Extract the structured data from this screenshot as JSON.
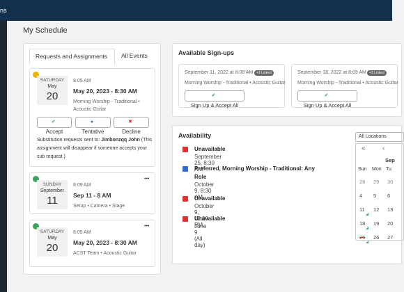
{
  "header": {
    "brand": "ns"
  },
  "page": {
    "title": "My Schedule"
  },
  "tabs": [
    "Requests and Assignments",
    "All Events"
  ],
  "assignments": [
    {
      "weekday": "SATURDAY",
      "month": "May",
      "day": 20,
      "time": "8:05 AM",
      "title": "May 20, 2023 - 8:30 AM",
      "details": "Morning Worship - Traditional • Acoustic Guitar",
      "actions": [
        "Accept",
        "Tentative",
        "Decline"
      ],
      "note_prefix": "Substitution requests sent to:",
      "note_name": "Jimbonzqq John",
      "note_suffix": "(This assignment will disappear if someone accepts your sub request.)"
    },
    {
      "weekday": "SUNDAY",
      "month": "September",
      "day": 11,
      "time": "8:09 AM",
      "title": "Sep 11 - 8 AM",
      "details": "Setup • Camera • Stage",
      "menu": "•••"
    },
    {
      "weekday": "SATURDAY",
      "month": "May",
      "day": 20,
      "time": "8:05 AM",
      "title": "May 20, 2023 - 8:30 AM",
      "details": "ACST Team • Acoustic Guitar",
      "menu": "•••"
    }
  ],
  "signups": {
    "title": "Available Sign-ups",
    "items": [
      {
        "date": "September 11, 2022 at 8:09 AM",
        "badge": "+3 Linked",
        "details": "Morning Worship - Traditional • Acoustic Guitar",
        "button": "Sign Up & Accept All"
      },
      {
        "date": "September 18, 2022 at 8:09 AM",
        "badge": "+3 Linked",
        "details": "Morning Worship - Traditional • Acoustic Guitar",
        "button": "Sign Up & Accept All"
      }
    ]
  },
  "availability": {
    "title": "Availability",
    "items": [
      {
        "status": "Unavailable",
        "detail": "September 25, 8:30 AM"
      },
      {
        "status": "Preferred, Morning Worship - Traditional: Any Role",
        "detail": "October 9, 8:30 AM"
      },
      {
        "status": "Unavailable",
        "detail": "October 9, 12:00 PM"
      },
      {
        "status": "Unavailable",
        "detail": "June 9 (All day)"
      }
    ]
  },
  "calendar": {
    "location": "All Locations",
    "first": "«",
    "prev": "‹",
    "month": "Sep",
    "weekdays": [
      "Sun",
      "Mon",
      "Tu"
    ],
    "weeks": [
      [
        28,
        29,
        30
      ],
      [
        4,
        5,
        6
      ],
      [
        11,
        12,
        13
      ],
      [
        18,
        19,
        20
      ],
      [
        25,
        26,
        27
      ]
    ]
  }
}
